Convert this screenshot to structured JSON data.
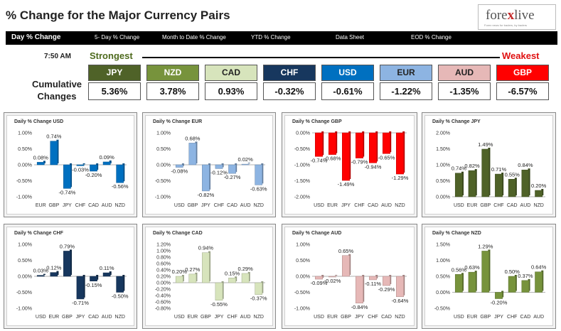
{
  "header": {
    "title": "% Change for the Major Currency Pairs",
    "logo_word_a": "fore",
    "logo_x": "x",
    "logo_word_b": "live",
    "logo_tagline": "Forex news for traders, by traders"
  },
  "nav": {
    "items": [
      "Day % Change",
      "5- Day % Change",
      "Month to Date % Change",
      "YTD % Change",
      "Data Sheet",
      "EOD % Change"
    ]
  },
  "summary": {
    "time": "7:50 AM",
    "strongest": "Strongest",
    "weakest": "Weakest",
    "cumulative_label_1": "Cumulative",
    "cumulative_label_2": "Changes",
    "currencies": [
      {
        "name": "JPY",
        "value": "5.36%",
        "color": "#4f6228",
        "text_color": "#ffffff"
      },
      {
        "name": "NZD",
        "value": "3.78%",
        "color": "#77933c",
        "text_color": "#ffffff"
      },
      {
        "name": "CAD",
        "value": "0.93%",
        "color": "#d7e4bc",
        "text_color": "#222222"
      },
      {
        "name": "CHF",
        "value": "-0.32%",
        "color": "#17375e",
        "text_color": "#ffffff"
      },
      {
        "name": "USD",
        "value": "-0.61%",
        "color": "#0070c0",
        "text_color": "#ffffff"
      },
      {
        "name": "EUR",
        "value": "-1.22%",
        "color": "#8db4e2",
        "text_color": "#222222"
      },
      {
        "name": "AUD",
        "value": "-1.35%",
        "color": "#e6b8b7",
        "text_color": "#222222"
      },
      {
        "name": "GBP",
        "value": "-6.57%",
        "color": "#ff0000",
        "text_color": "#ffffff"
      }
    ]
  },
  "chart_data": [
    {
      "type": "bar",
      "title": "Daily % Change USD",
      "categories": [
        "EUR",
        "GBP",
        "JPY",
        "CHF",
        "CAD",
        "AUD",
        "NZD"
      ],
      "values": [
        0.08,
        0.74,
        -0.74,
        -0.03,
        -0.2,
        0.09,
        -0.56
      ],
      "labels": [
        "0.08%",
        "0.74%",
        "-0.74%",
        "-0.03%",
        "-0.20%",
        "0.09%",
        "-0.56%"
      ],
      "yticks": [
        "1.00%",
        "0.50%",
        "0.00%",
        "-0.50%",
        "-1.00%"
      ],
      "ylim": [
        -1.0,
        1.0
      ],
      "color": "#0070c0"
    },
    {
      "type": "bar",
      "title": "Daily % Change EUR",
      "categories": [
        "USD",
        "GBP",
        "JPY",
        "CHF",
        "CAD",
        "AUD",
        "NZD"
      ],
      "values": [
        -0.08,
        0.68,
        -0.82,
        -0.12,
        -0.27,
        0.02,
        -0.63
      ],
      "labels": [
        "-0.08%",
        "0.68%",
        "-0.82%",
        "-0.12%",
        "-0.27%",
        "0.02%",
        "-0.63%"
      ],
      "yticks": [
        "1.00%",
        "0.50%",
        "0.00%",
        "-0.50%",
        "-1.00%"
      ],
      "ylim": [
        -1.0,
        1.0
      ],
      "color": "#8db4e2"
    },
    {
      "type": "bar",
      "title": "Daily % Change GBP",
      "categories": [
        "USD",
        "EUR",
        "JPY",
        "CHF",
        "CAD",
        "AUD",
        "NZD"
      ],
      "values": [
        -0.74,
        -0.68,
        -1.49,
        -0.79,
        -0.94,
        -0.65,
        -1.29
      ],
      "labels": [
        "-0.74%",
        "-0.68%",
        "-1.49%",
        "-0.79%",
        "-0.94%",
        "-0.65%",
        "-1.29%"
      ],
      "yticks": [
        "0.00%",
        "-0.50%",
        "-1.00%",
        "-1.50%",
        "-2.00%"
      ],
      "ylim": [
        -2.0,
        0.0
      ],
      "color": "#ff0000"
    },
    {
      "type": "bar",
      "title": "Daily % Change JPY",
      "categories": [
        "USD",
        "EUR",
        "GBP",
        "CHF",
        "CAD",
        "AUD",
        "NZD"
      ],
      "values": [
        0.74,
        0.82,
        1.49,
        0.71,
        0.55,
        0.84,
        0.2
      ],
      "labels": [
        "0.74%",
        "0.82%",
        "1.49%",
        "0.71%",
        "0.55%",
        "0.84%",
        "0.20%"
      ],
      "yticks": [
        "2.00%",
        "1.50%",
        "1.00%",
        "0.50%",
        "0.00%"
      ],
      "ylim": [
        0.0,
        2.0
      ],
      "color": "#4f6228"
    },
    {
      "type": "bar",
      "title": "Daily % Change CHF",
      "categories": [
        "USD",
        "EUR",
        "GBP",
        "JPY",
        "CAD",
        "AUD",
        "NZD"
      ],
      "values": [
        0.03,
        0.12,
        0.79,
        -0.71,
        -0.15,
        0.11,
        -0.5
      ],
      "labels": [
        "0.03%",
        "0.12%",
        "0.79%",
        "-0.71%",
        "-0.15%",
        "0.11%",
        "-0.50%"
      ],
      "yticks": [
        "1.00%",
        "0.50%",
        "0.00%",
        "-0.50%",
        "-1.00%"
      ],
      "ylim": [
        -1.0,
        1.0
      ],
      "color": "#17375e"
    },
    {
      "type": "bar",
      "title": "Daily % Change CAD",
      "categories": [
        "USD",
        "EUR",
        "GBP",
        "JPY",
        "CHF",
        "AUD",
        "NZD"
      ],
      "values": [
        0.2,
        0.27,
        0.94,
        -0.55,
        0.15,
        0.29,
        -0.37
      ],
      "labels": [
        "0.20%",
        "0.27%",
        "0.94%",
        "-0.55%",
        "0.15%",
        "0.29%",
        "-0.37%"
      ],
      "yticks": [
        "1.20%",
        "1.00%",
        "0.80%",
        "0.60%",
        "0.40%",
        "0.20%",
        "0.00%",
        "-0.20%",
        "-0.40%",
        "-0.60%",
        "-0.80%"
      ],
      "ylim": [
        -0.8,
        1.2
      ],
      "color": "#d7e4bc"
    },
    {
      "type": "bar",
      "title": "Daily % Change AUD",
      "categories": [
        "USD",
        "EUR",
        "GBP",
        "JPY",
        "CHF",
        "CAD",
        "NZD"
      ],
      "values": [
        -0.09,
        -0.02,
        0.65,
        -0.84,
        -0.11,
        -0.29,
        -0.64
      ],
      "labels": [
        "-0.09%",
        "-0.02%",
        "0.65%",
        "-0.84%",
        "-0.11%",
        "-0.29%",
        "-0.64%"
      ],
      "yticks": [
        "1.00%",
        "0.50%",
        "0.00%",
        "-0.50%",
        "-1.00%"
      ],
      "ylim": [
        -1.0,
        1.0
      ],
      "color": "#e6b8b7"
    },
    {
      "type": "bar",
      "title": "Daily % Change NZD",
      "categories": [
        "USD",
        "EUR",
        "GBP",
        "JPY",
        "CHF",
        "CAD",
        "AUD"
      ],
      "values": [
        0.56,
        0.63,
        1.29,
        -0.2,
        0.5,
        0.37,
        0.64
      ],
      "labels": [
        "0.56%",
        "0.63%",
        "1.29%",
        "-0.20%",
        "0.50%",
        "0.37%",
        "0.64%"
      ],
      "yticks": [
        "1.50%",
        "1.00%",
        "0.50%",
        "0.00%",
        "-0.50%"
      ],
      "ylim": [
        -0.5,
        1.5
      ],
      "color": "#77933c"
    }
  ]
}
